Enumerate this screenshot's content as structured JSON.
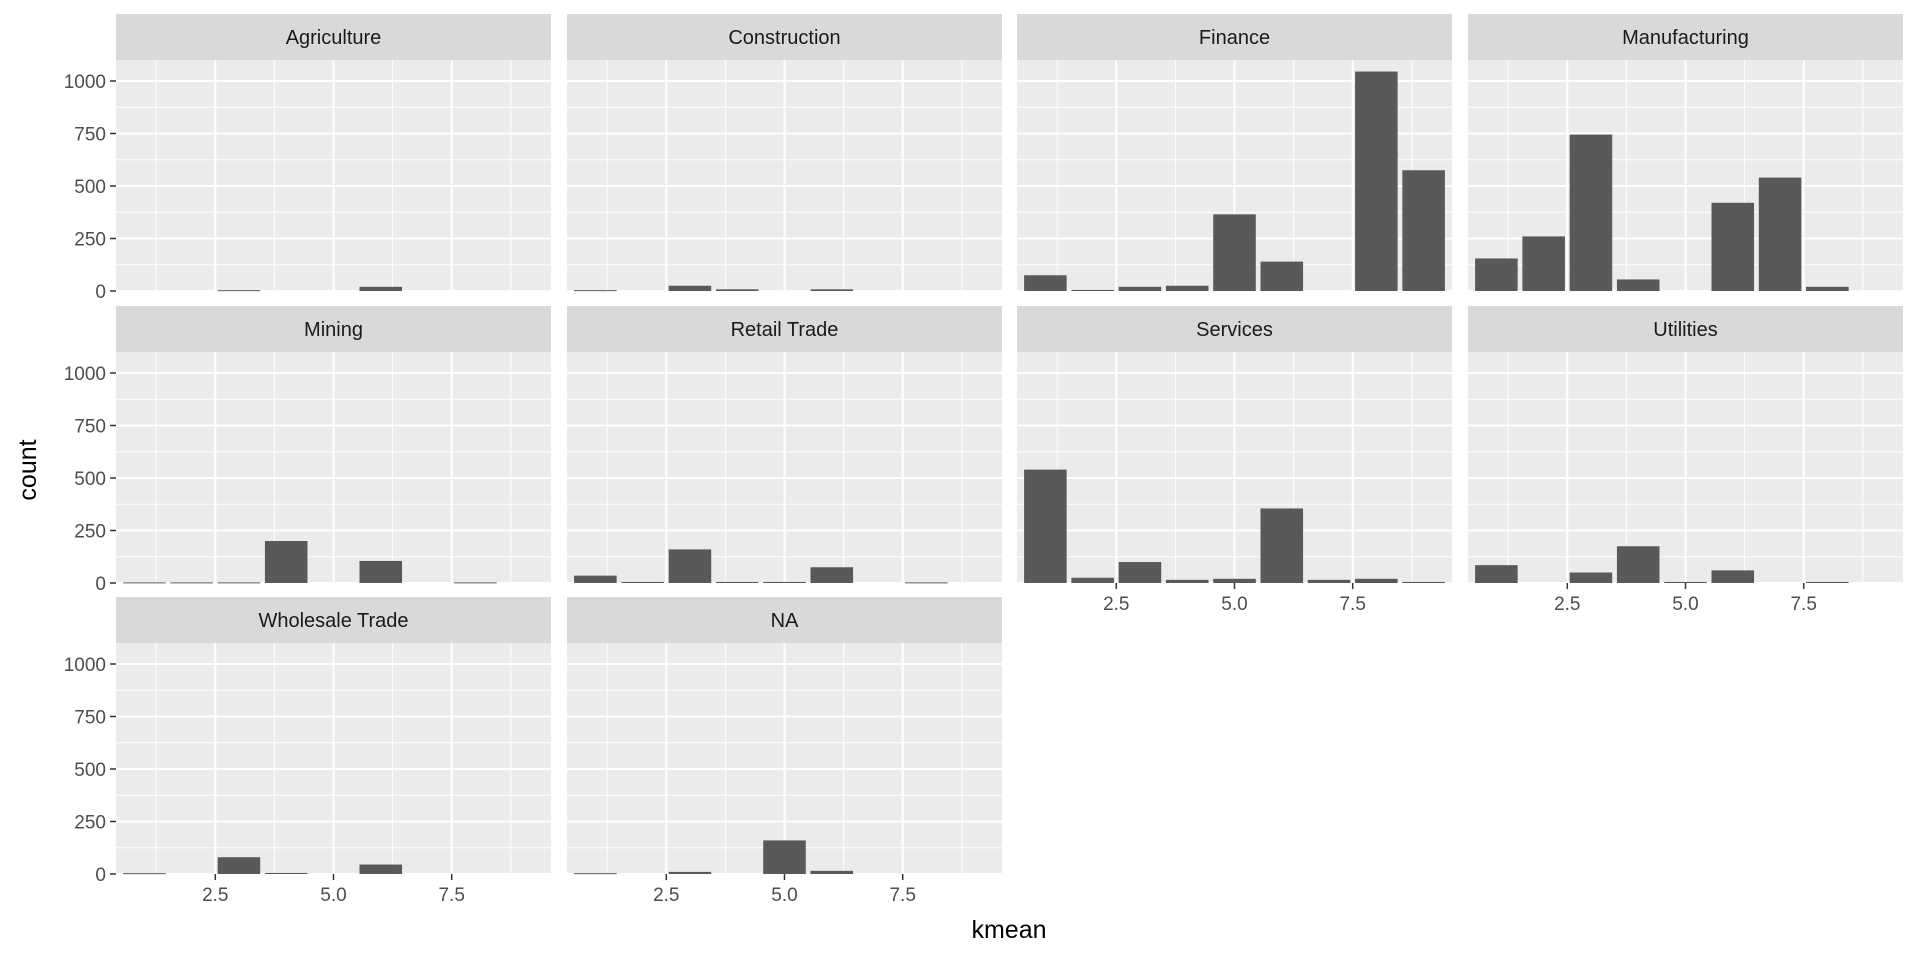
{
  "chart_data": {
    "type": "bar",
    "layout": "facet_wrap",
    "xlabel": "kmean",
    "ylabel": "count",
    "xlim": [
      0.4,
      9.6
    ],
    "ylim": [
      0,
      1100
    ],
    "x_ticks": [
      2.5,
      5.0,
      7.5
    ],
    "x_tick_labels": [
      "2.5",
      "5.0",
      "7.5"
    ],
    "y_ticks": [
      0,
      250,
      500,
      750,
      1000
    ],
    "y_tick_labels": [
      "0",
      "250",
      "500",
      "750",
      "1000"
    ],
    "categories": [
      1,
      2,
      3,
      4,
      5,
      6,
      7,
      8,
      9
    ],
    "grid": true,
    "colors": {
      "panel_bg": "#ebebeb",
      "strip_bg": "#d9d9d9",
      "grid": "#ffffff",
      "bar": "#595959"
    },
    "panels": [
      {
        "name": "Agriculture",
        "values": [
          0,
          0,
          4,
          0,
          0,
          20,
          0,
          0,
          0
        ]
      },
      {
        "name": "Construction",
        "values": [
          4,
          0,
          25,
          8,
          0,
          8,
          0,
          0,
          0
        ]
      },
      {
        "name": "Finance",
        "values": [
          75,
          5,
          20,
          25,
          365,
          140,
          0,
          1045,
          575
        ]
      },
      {
        "name": "Manufacturing",
        "values": [
          155,
          260,
          745,
          55,
          0,
          420,
          540,
          20,
          0
        ]
      },
      {
        "name": "Mining",
        "values": [
          3,
          3,
          3,
          200,
          0,
          105,
          0,
          3,
          0
        ]
      },
      {
        "name": "Retail Trade",
        "values": [
          35,
          5,
          160,
          5,
          5,
          75,
          0,
          3,
          0
        ]
      },
      {
        "name": "Services",
        "values": [
          540,
          25,
          100,
          15,
          20,
          355,
          15,
          20,
          5
        ]
      },
      {
        "name": "Utilities",
        "values": [
          85,
          0,
          50,
          175,
          5,
          60,
          0,
          5,
          0
        ]
      },
      {
        "name": "Wholesale Trade",
        "values": [
          4,
          0,
          80,
          5,
          0,
          45,
          0,
          0,
          0
        ]
      },
      {
        "name": "NA",
        "values": [
          4,
          0,
          10,
          0,
          160,
          15,
          0,
          0,
          0
        ]
      }
    ]
  }
}
